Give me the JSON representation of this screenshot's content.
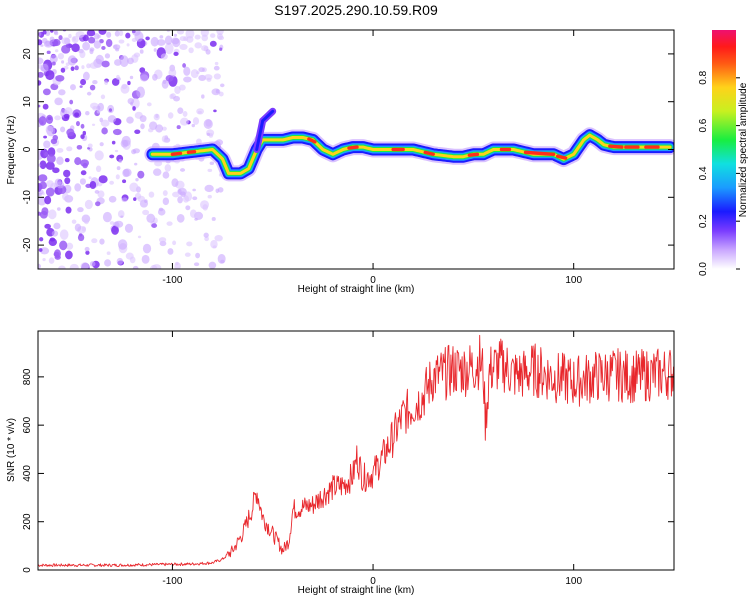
{
  "title": "S197.2025.290.10.59.R09",
  "colors": {
    "snr_line": "#e8272c",
    "ridge_core": "#ff2d1a"
  },
  "chart_data": [
    {
      "type": "heatmap",
      "xlabel": "Height of straight line (km)",
      "ylabel": "Frequency (Hz)",
      "xlim": [
        -167,
        150
      ],
      "ylim": [
        -25,
        25
      ],
      "xticks": [
        -100,
        0,
        100
      ],
      "yticks": [
        -20,
        -10,
        0,
        10,
        20
      ],
      "xtick_labels": [
        "-100",
        "0",
        "100"
      ],
      "ytick_labels": [
        "-20",
        "-10",
        "0",
        "10",
        "20"
      ],
      "colorbar": {
        "label": "Normalized spectral amplitude",
        "range": [
          0,
          1
        ],
        "ticks": [
          0.0,
          0.2,
          0.4,
          0.6,
          0.8
        ],
        "tick_labels": [
          "0.0",
          "0.2",
          "0.4",
          "0.6",
          "0.8"
        ]
      },
      "ridge": {
        "x": [
          -110,
          -100,
          -90,
          -80,
          -75,
          -72,
          -66,
          -62,
          -58,
          -55,
          -50,
          -45,
          -40,
          -35,
          -30,
          -25,
          -20,
          -15,
          -10,
          -5,
          0,
          10,
          20,
          30,
          40,
          45,
          50,
          55,
          60,
          70,
          80,
          90,
          95,
          100,
          105,
          108,
          112,
          115,
          120,
          130,
          140,
          148
        ],
        "freq": [
          -1,
          -1,
          -0.5,
          0,
          -2,
          -5,
          -5,
          -4,
          0,
          2,
          2,
          2,
          2.5,
          2.5,
          2,
          0,
          -1,
          0,
          0.5,
          0.5,
          0,
          0,
          0,
          -1,
          -1.5,
          -1.5,
          -1,
          -1,
          0,
          0,
          -1,
          -1,
          -2,
          -1,
          2,
          3,
          2,
          1,
          0.5,
          0.5,
          0.5,
          0.5
        ],
        "branch": {
          "x": [
            -58,
            -55,
            -50
          ],
          "freq": [
            0,
            6,
            8
          ]
        }
      }
    },
    {
      "type": "line",
      "xlabel": "Height of straight line (km)",
      "ylabel": "SNR (10 * v/v)",
      "xlim": [
        -167,
        150
      ],
      "ylim": [
        0,
        990
      ],
      "xticks": [
        -100,
        0,
        100
      ],
      "yticks": [
        0,
        200,
        400,
        600,
        800
      ],
      "xtick_labels": [
        "-100",
        "0",
        "100"
      ],
      "ytick_labels": [
        "0",
        "200",
        "400",
        "600",
        "800"
      ],
      "series": [
        {
          "name": "SNR",
          "x": [
            -167,
            -150,
            -130,
            -110,
            -90,
            -80,
            -75,
            -70,
            -65,
            -60,
            -58,
            -55,
            -50,
            -47,
            -45,
            -42,
            -40,
            -35,
            -30,
            -25,
            -20,
            -15,
            -10,
            -8,
            -5,
            0,
            5,
            10,
            15,
            20,
            25,
            30,
            35,
            40,
            45,
            50,
            53,
            55,
            56,
            58,
            60,
            65,
            70,
            75,
            80,
            90,
            100,
            110,
            120,
            130,
            140,
            150
          ],
          "y": [
            20,
            20,
            20,
            22,
            25,
            30,
            45,
            80,
            150,
            260,
            330,
            220,
            150,
            110,
            80,
            120,
            250,
            260,
            270,
            310,
            340,
            350,
            390,
            470,
            380,
            400,
            470,
            550,
            640,
            680,
            720,
            800,
            810,
            830,
            830,
            840,
            870,
            820,
            600,
            820,
            840,
            850,
            810,
            810,
            830,
            800,
            780,
            800,
            810,
            800,
            810,
            820
          ]
        }
      ]
    }
  ]
}
